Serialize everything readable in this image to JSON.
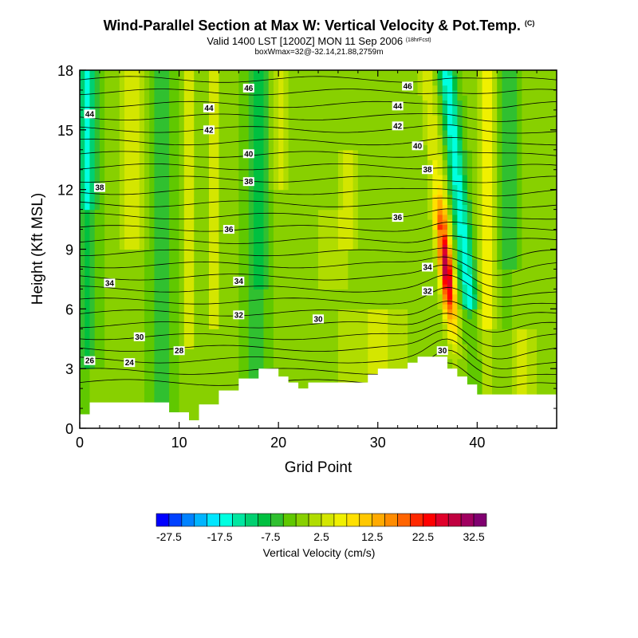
{
  "header": {
    "title": "Wind-Parallel Section at Max W: Vertical Velocity & Pot.Temp.",
    "title_tag": "(C)",
    "valid": "Valid 1400 LST [1200Z] MON 11 Sep 2006",
    "valid_tag": "(18hrFcst)",
    "box": "boxWmax=32@-32.14,21.88,2759m"
  },
  "chart_data": {
    "type": "heatmap",
    "xlabel": "Grid Point",
    "ylabel": "Height (Kft MSL)",
    "xlim": [
      0,
      48
    ],
    "ylim": [
      0,
      18
    ],
    "xticks": [
      0,
      10,
      20,
      30,
      40
    ],
    "yticks": [
      0,
      3,
      6,
      9,
      12,
      15,
      18
    ],
    "colorbar": {
      "label": "Vertical Velocity (cm/s)",
      "tick_labels": [
        "-27.5",
        "-17.5",
        "-7.5",
        "2.5",
        "12.5",
        "22.5",
        "32.5"
      ],
      "tick_values": [
        -27.5,
        -17.5,
        -7.5,
        2.5,
        12.5,
        22.5,
        32.5
      ],
      "bins": [
        -30,
        -27.5,
        -25,
        -22.5,
        -20,
        -17.5,
        -15,
        -12.5,
        -10,
        -7.5,
        -5,
        -2.5,
        0,
        2.5,
        5,
        7.5,
        10,
        12.5,
        15,
        17.5,
        20,
        22.5,
        25,
        27.5,
        30,
        32.5,
        35
      ],
      "colors": [
        "#0000ff",
        "#0041ff",
        "#0082ff",
        "#00b4ff",
        "#00e6ff",
        "#00ffe0",
        "#00e6a0",
        "#00d070",
        "#00c040",
        "#30c030",
        "#60c800",
        "#88d000",
        "#b0dc00",
        "#d4e600",
        "#f0f000",
        "#ffe000",
        "#ffc800",
        "#ffaa00",
        "#ff8c00",
        "#ff6400",
        "#ff2800",
        "#ff0000",
        "#e0002a",
        "#c00040",
        "#a00060",
        "#800070"
      ]
    },
    "terrain": [
      [
        0,
        0.7
      ],
      [
        1,
        0.7
      ],
      [
        1,
        1.3
      ],
      [
        9,
        1.3
      ],
      [
        9,
        0.8
      ],
      [
        10,
        0.8
      ],
      [
        10,
        0.8
      ],
      [
        11,
        0.8
      ],
      [
        11,
        0.4
      ],
      [
        12,
        0.4
      ],
      [
        12,
        1.2
      ],
      [
        14,
        1.2
      ],
      [
        14,
        1.9
      ],
      [
        16,
        1.9
      ],
      [
        16,
        2.5
      ],
      [
        18,
        2.5
      ],
      [
        18,
        3.0
      ],
      [
        20,
        3.0
      ],
      [
        20,
        2.6
      ],
      [
        21,
        2.6
      ],
      [
        21,
        2.3
      ],
      [
        22,
        2.3
      ],
      [
        22,
        2.0
      ],
      [
        23,
        2.0
      ],
      [
        23,
        2.3
      ],
      [
        29,
        2.3
      ],
      [
        29,
        2.7
      ],
      [
        30,
        2.7
      ],
      [
        30,
        3.0
      ],
      [
        33,
        3.0
      ],
      [
        33,
        3.3
      ],
      [
        34,
        3.3
      ],
      [
        34,
        3.6
      ],
      [
        37,
        3.6
      ],
      [
        37,
        3.0
      ],
      [
        38,
        3.0
      ],
      [
        38,
        2.6
      ],
      [
        39,
        2.6
      ],
      [
        39,
        2.2
      ],
      [
        40,
        2.2
      ],
      [
        40,
        1.7
      ],
      [
        48,
        1.7
      ]
    ],
    "theta_labels": [
      {
        "text": "46",
        "x": 17,
        "y": 17.1
      },
      {
        "text": "46",
        "x": 33,
        "y": 17.2
      },
      {
        "text": "44",
        "x": 1,
        "y": 15.8
      },
      {
        "text": "44",
        "x": 13,
        "y": 16.1
      },
      {
        "text": "44",
        "x": 32,
        "y": 16.2
      },
      {
        "text": "42",
        "x": 13,
        "y": 15.0
      },
      {
        "text": "42",
        "x": 32,
        "y": 15.2
      },
      {
        "text": "40",
        "x": 17,
        "y": 13.8
      },
      {
        "text": "40",
        "x": 34,
        "y": 14.2
      },
      {
        "text": "38",
        "x": 2,
        "y": 12.1
      },
      {
        "text": "38",
        "x": 17,
        "y": 12.4
      },
      {
        "text": "38",
        "x": 35,
        "y": 13.0
      },
      {
        "text": "36",
        "x": 15,
        "y": 10.0
      },
      {
        "text": "36",
        "x": 32,
        "y": 10.6
      },
      {
        "text": "34",
        "x": 3,
        "y": 7.3
      },
      {
        "text": "34",
        "x": 16,
        "y": 7.4
      },
      {
        "text": "34",
        "x": 35,
        "y": 8.1
      },
      {
        "text": "32",
        "x": 16,
        "y": 5.7
      },
      {
        "text": "32",
        "x": 35,
        "y": 6.9
      },
      {
        "text": "30",
        "x": 6,
        "y": 4.6
      },
      {
        "text": "30",
        "x": 24,
        "y": 5.5
      },
      {
        "text": "30",
        "x": 36.5,
        "y": 3.9
      },
      {
        "text": "28",
        "x": 10,
        "y": 3.9
      },
      {
        "text": "26",
        "x": 1,
        "y": 3.4
      },
      {
        "text": "24",
        "x": 5,
        "y": 3.3
      }
    ]
  }
}
